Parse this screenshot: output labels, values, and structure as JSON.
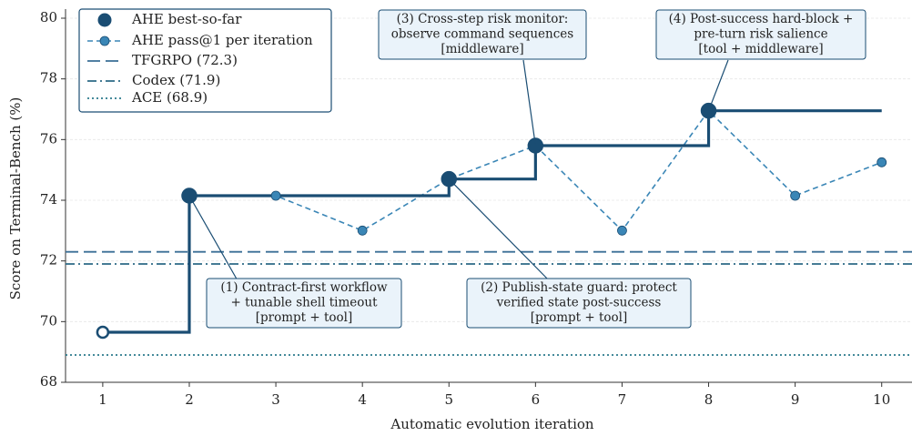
{
  "chart_data": {
    "type": "line",
    "xlabel": "Automatic evolution iteration",
    "ylabel": "Score on Terminal-Bench (%)",
    "x": [
      1,
      2,
      3,
      4,
      5,
      6,
      7,
      8,
      9,
      10
    ],
    "xlim": [
      0.57,
      10.35
    ],
    "xticks": [
      1,
      2,
      3,
      4,
      5,
      6,
      7,
      8,
      9,
      10
    ],
    "ylim": [
      68,
      80
    ],
    "yticks": [
      68,
      70,
      72,
      74,
      76,
      78,
      80
    ],
    "grid": true,
    "legend": "upper left",
    "series": [
      {
        "name": "AHE best-so-far",
        "color": "#1a4d73",
        "values": [
          69.65,
          74.15,
          74.15,
          74.15,
          74.7,
          75.8,
          75.8,
          76.95,
          76.95,
          76.95
        ]
      },
      {
        "name": "AHE pass@1 per iteration",
        "color": "#3a86b6",
        "values": [
          null,
          74.15,
          74.15,
          73.0,
          74.7,
          75.8,
          73.0,
          76.95,
          74.15,
          75.25
        ]
      }
    ],
    "references": [
      {
        "name": "TFGRPO (72.3)",
        "value": 72.3,
        "color": "#3a6f96"
      },
      {
        "name": "Codex (71.9)",
        "value": 71.9,
        "color": "#2d6a86"
      },
      {
        "name": "ACE (68.9)",
        "value": 68.9,
        "color": "#2b7a8c"
      }
    ],
    "annotations": [
      {
        "text": [
          "(1) Contract-first workflow",
          "+ tunable shell timeout",
          "[prompt + tool]"
        ]
      },
      {
        "text": [
          "(2) Publish-state guard: protect",
          "verified state post-success",
          "[prompt + tool]"
        ]
      },
      {
        "text": [
          "(3) Cross-step risk monitor:",
          "observe command sequences",
          "[middleware]"
        ]
      },
      {
        "text": [
          "(4) Post-success hard-block +",
          "pre-turn risk salience",
          "[tool + middleware]"
        ]
      }
    ]
  }
}
